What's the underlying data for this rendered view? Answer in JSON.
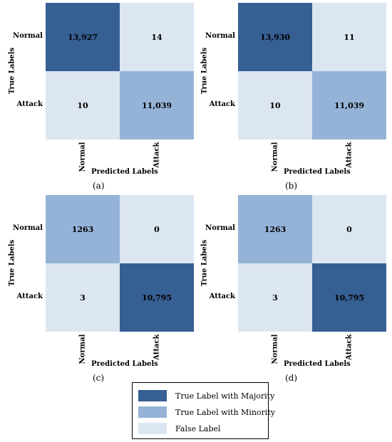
{
  "colors": {
    "majority": "#365f93",
    "minority": "#95b3d7",
    "false": "#dce6f1"
  },
  "chart_data": [
    {
      "type": "heatmap",
      "caption": "(a)",
      "xlabel": "Predicted Labels",
      "ylabel": "True Labels",
      "rows": [
        "Normal",
        "Attack"
      ],
      "cols": [
        "Normal",
        "Attack"
      ],
      "values": [
        [
          "13,927",
          "14"
        ],
        [
          "10",
          "11,039"
        ]
      ],
      "cell_classes": [
        [
          "majority",
          "false"
        ],
        [
          "false",
          "minority"
        ]
      ]
    },
    {
      "type": "heatmap",
      "caption": "(b)",
      "xlabel": "Predicted Labels",
      "ylabel": "True Labels",
      "rows": [
        "Normal",
        "Attack"
      ],
      "cols": [
        "Normal",
        "Attack"
      ],
      "values": [
        [
          "13,930",
          "11"
        ],
        [
          "10",
          "11,039"
        ]
      ],
      "cell_classes": [
        [
          "majority",
          "false"
        ],
        [
          "false",
          "minority"
        ]
      ]
    },
    {
      "type": "heatmap",
      "caption": "(c)",
      "xlabel": "Predicted Labels",
      "ylabel": "True Labels",
      "rows": [
        "Normal",
        "Attack"
      ],
      "cols": [
        "Normal",
        "Attack"
      ],
      "values": [
        [
          "1263",
          "0"
        ],
        [
          "3",
          "10,795"
        ]
      ],
      "cell_classes": [
        [
          "minority",
          "false"
        ],
        [
          "false",
          "majority"
        ]
      ]
    },
    {
      "type": "heatmap",
      "caption": "(d)",
      "xlabel": "Predicted Labels",
      "ylabel": "True Labels",
      "rows": [
        "Normal",
        "Attack"
      ],
      "cols": [
        "Normal",
        "Attack"
      ],
      "values": [
        [
          "1263",
          "0"
        ],
        [
          "3",
          "10,795"
        ]
      ],
      "cell_classes": [
        [
          "minority",
          "false"
        ],
        [
          "false",
          "majority"
        ]
      ]
    }
  ],
  "legend": [
    {
      "label": "True Label with Majority",
      "class": "majority"
    },
    {
      "label": "True Label with Minority",
      "class": "minority"
    },
    {
      "label": "False Label",
      "class": "false"
    }
  ]
}
